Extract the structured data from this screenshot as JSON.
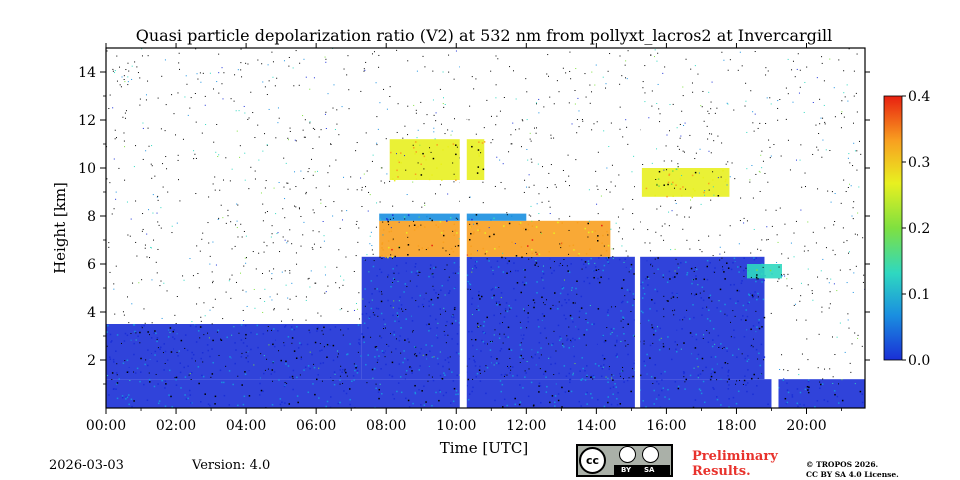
{
  "chart_data": {
    "type": "heatmap",
    "title": "Quasi particle depolarization ratio (V2) at 532 nm from pollyxt_lacros2 at Invercargill",
    "xlabel": "Time [UTC]",
    "ylabel": "Height [km]",
    "xlim_hours": [
      0,
      21.67
    ],
    "ylim_km": [
      0,
      15
    ],
    "xticks": [
      {
        "value": 0,
        "label": "00:00"
      },
      {
        "value": 2,
        "label": "02:00"
      },
      {
        "value": 4,
        "label": "04:00"
      },
      {
        "value": 6,
        "label": "06:00"
      },
      {
        "value": 8,
        "label": "08:00"
      },
      {
        "value": 10,
        "label": "10:00"
      },
      {
        "value": 12,
        "label": "12:00"
      },
      {
        "value": 14,
        "label": "14:00"
      },
      {
        "value": 16,
        "label": "16:00"
      },
      {
        "value": 18,
        "label": "18:00"
      },
      {
        "value": 20,
        "label": "20:00"
      }
    ],
    "yticks": [
      {
        "value": 2,
        "label": "2"
      },
      {
        "value": 4,
        "label": "4"
      },
      {
        "value": 6,
        "label": "6"
      },
      {
        "value": 8,
        "label": "8"
      },
      {
        "value": 10,
        "label": "10"
      },
      {
        "value": 12,
        "label": "12"
      },
      {
        "value": 14,
        "label": "14"
      }
    ],
    "colorbar": {
      "range": [
        0.0,
        0.4
      ],
      "ticks": [
        {
          "value": 0.0,
          "label": "0.0"
        },
        {
          "value": 0.1,
          "label": "0.1"
        },
        {
          "value": 0.2,
          "label": "0.2"
        },
        {
          "value": 0.3,
          "label": "0.3"
        },
        {
          "value": 0.4,
          "label": "0.4"
        }
      ],
      "colormap": [
        "#1a2fd6",
        "#1a8fe0",
        "#2fd8c0",
        "#7fe040",
        "#e8f020",
        "#f8a020",
        "#e82010"
      ]
    },
    "regions": [
      {
        "name": "boundary-layer aerosol",
        "t_start": 0,
        "t_end": 21.67,
        "h_bottom": 0,
        "h_top": 1.2,
        "value": 0.03
      },
      {
        "name": "low aerosol / noise layer",
        "t_start": 0,
        "t_end": 7.3,
        "h_bottom": 1.2,
        "h_top": 3.5,
        "value": 0.01
      },
      {
        "name": "dense low-depol layer",
        "t_start": 7.3,
        "t_end": 18.8,
        "h_bottom": 1.2,
        "h_top": 6.3,
        "value": 0.02
      },
      {
        "name": "cirrus layer",
        "t_start": 7.8,
        "t_end": 14.4,
        "h_bottom": 6.3,
        "h_top": 7.8,
        "value": 0.32
      },
      {
        "name": "high cloud layer",
        "t_start": 8.1,
        "t_end": 10.8,
        "h_bottom": 9.5,
        "h_top": 11.2,
        "value": 0.3
      },
      {
        "name": "cloud-top blue band",
        "t_start": 7.8,
        "t_end": 12.0,
        "h_bottom": 7.8,
        "h_top": 8.1,
        "value": 0.05
      },
      {
        "name": "cirrus streak",
        "t_start": 15.3,
        "t_end": 17.8,
        "h_bottom": 8.8,
        "h_top": 10.0,
        "value": 0.28
      },
      {
        "name": "descending ice layer",
        "t_start": 18.3,
        "t_end": 19.3,
        "h_bottom": 5.4,
        "h_top": 6.0,
        "value": 0.12
      }
    ],
    "data_gaps": [
      {
        "t_start": 10.1,
        "t_end": 10.3
      },
      {
        "t_start": 15.1,
        "t_end": 15.25
      },
      {
        "t_start": 19.0,
        "t_end": 19.2,
        "h_top": 3.0
      }
    ]
  },
  "footer": {
    "date": "2026-03-03",
    "version": "Version: 4.0",
    "preliminary_line1": "Preliminary",
    "preliminary_line2": "Results.",
    "copyright_line1": "© TROPOS 2026.",
    "copyright_line2": "CC BY SA 4.0 License.",
    "cc_badge_by": "BY",
    "cc_badge_sa": "SA",
    "cc_badge_cc": "cc"
  }
}
